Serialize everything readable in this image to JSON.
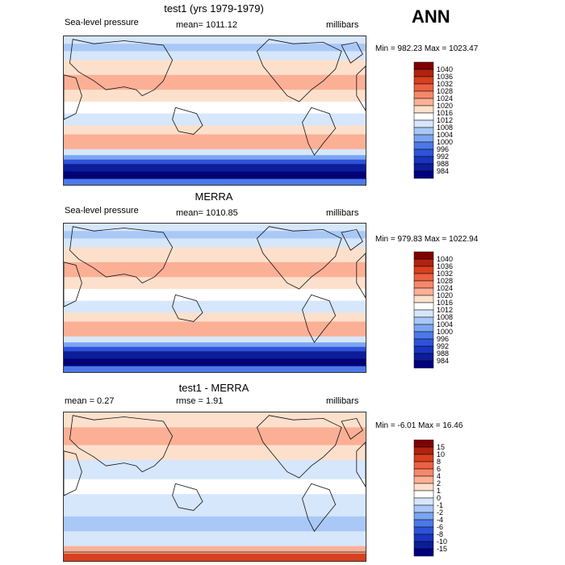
{
  "season": "ANN",
  "panels": [
    {
      "title": "test1 (yrs 1979-1979)",
      "left_label": "Sea-level pressure",
      "center_label": "mean= 1011.12",
      "units": "millibars",
      "minmax": "Min = 982.23 Max = 1023.47"
    },
    {
      "title": "MERRA",
      "left_label": "Sea-level pressure",
      "center_label": "mean= 1010.85",
      "units": "millibars",
      "minmax": "Min = 979.83 Max = 1022.94"
    },
    {
      "title": "test1 - MERRA",
      "left_label": "mean =    0.27",
      "center_label": "rmse =    1.91",
      "units": "millibars",
      "minmax": "Min =  -6.01 Max =  16.46"
    }
  ],
  "chart_data": [
    {
      "type": "heatmap",
      "title": "test1 (yrs 1979-1979)",
      "colorbar": {
        "levels": [
          "1040",
          "1036",
          "1032",
          "1028",
          "1024",
          "1020",
          "1016",
          "1012",
          "1008",
          "1004",
          "1000",
          "996",
          "992",
          "988",
          "984"
        ],
        "colors": [
          "#800000",
          "#b0230f",
          "#d8401f",
          "#ec6142",
          "#f5886b",
          "#fbb096",
          "#fde0cc",
          "#ffffff",
          "#d6e6fb",
          "#a9c8f6",
          "#7ba5ef",
          "#4c79e8",
          "#2f52da",
          "#1a34c0",
          "#0c1d98",
          "#000080"
        ]
      }
    },
    {
      "type": "heatmap",
      "title": "MERRA",
      "colorbar": {
        "levels": [
          "1040",
          "1036",
          "1032",
          "1028",
          "1024",
          "1020",
          "1016",
          "1012",
          "1008",
          "1004",
          "1000",
          "996",
          "992",
          "988",
          "984"
        ],
        "colors": [
          "#800000",
          "#b0230f",
          "#d8401f",
          "#ec6142",
          "#f5886b",
          "#fbb096",
          "#fde0cc",
          "#ffffff",
          "#d6e6fb",
          "#a9c8f6",
          "#7ba5ef",
          "#4c79e8",
          "#2f52da",
          "#1a34c0",
          "#0c1d98",
          "#000080"
        ]
      }
    },
    {
      "type": "heatmap",
      "title": "test1 - MERRA",
      "colorbar": {
        "levels": [
          "15",
          "10",
          "8",
          "6",
          "4",
          "2",
          "1",
          "0",
          "-1",
          "-2",
          "-4",
          "-6",
          "-8",
          "-10",
          "-15"
        ],
        "colors": [
          "#800000",
          "#b0230f",
          "#d8401f",
          "#ec6142",
          "#f5886b",
          "#fbb096",
          "#fde0cc",
          "#ffffff",
          "#d6e6fb",
          "#a9c8f6",
          "#7ba5ef",
          "#4c79e8",
          "#2f52da",
          "#1a34c0",
          "#0c1d98",
          "#000080"
        ]
      }
    }
  ]
}
